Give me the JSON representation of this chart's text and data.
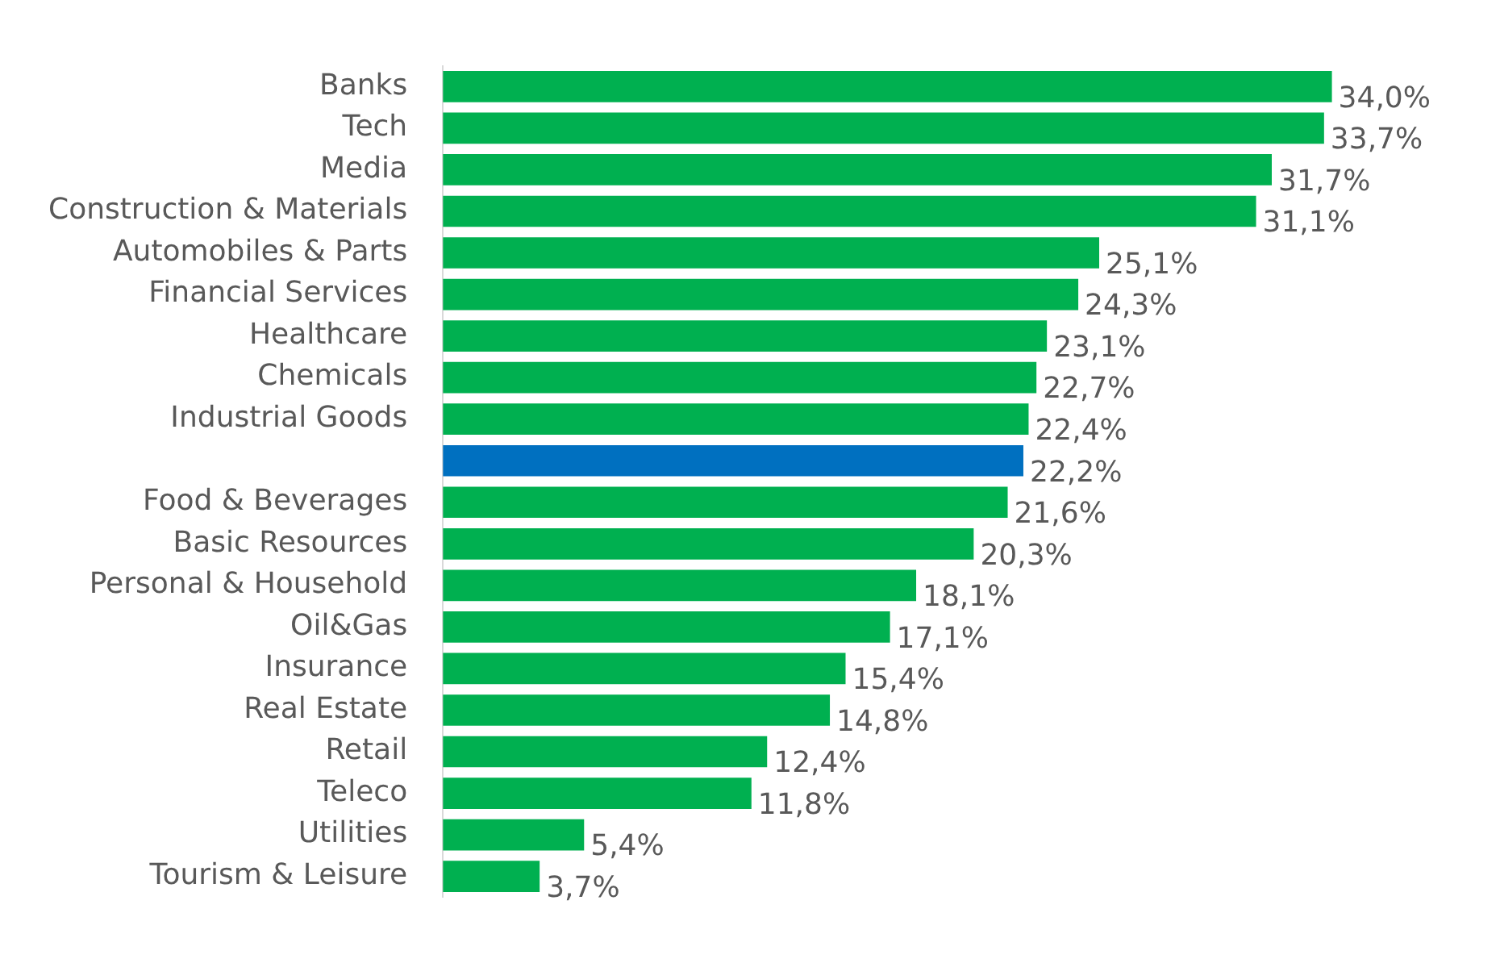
{
  "chart_data": {
    "type": "bar",
    "orientation": "horizontal",
    "categories": [
      "Banks",
      "Tech",
      "Media",
      "Construction & Materials",
      "Automobiles & Parts",
      "Financial Services",
      "Healthcare",
      "Chemicals",
      "Industrial Goods",
      null,
      "Food & Beverages",
      "Basic Resources",
      "Personal & Household",
      "Oil&Gas",
      "Insurance",
      "Real Estate",
      "Retail",
      "Teleco",
      "Utilities",
      "Tourism & Leisure"
    ],
    "values": [
      34.0,
      33.7,
      31.7,
      31.1,
      25.1,
      24.3,
      23.1,
      22.7,
      22.4,
      22.2,
      21.6,
      20.3,
      18.1,
      17.1,
      15.4,
      14.8,
      12.4,
      11.8,
      5.4,
      3.7
    ],
    "colors": [
      "#00b050",
      "#00b050",
      "#00b050",
      "#00b050",
      "#00b050",
      "#00b050",
      "#00b050",
      "#00b050",
      "#00b050",
      "#0070c0",
      "#00b050",
      "#00b050",
      "#00b050",
      "#00b050",
      "#00b050",
      "#00b050",
      "#00b050",
      "#00b050",
      "#00b050",
      "#00b050"
    ],
    "value_labels": [
      "34,0%",
      "33,7%",
      "31,7%",
      "31,1%",
      "25,1%",
      "24,3%",
      "23,1%",
      "22,7%",
      "22,4%",
      "22,2%",
      "21,6%",
      "20,3%",
      "18,1%",
      "17,1%",
      "15,4%",
      "14,8%",
      "12,4%",
      "11,8%",
      "5,4%",
      "3,7%"
    ],
    "legend": false
  }
}
